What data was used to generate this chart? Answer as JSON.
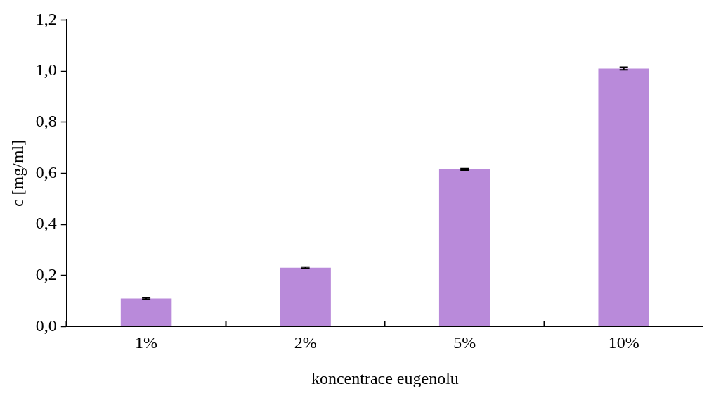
{
  "chart_data": {
    "type": "bar",
    "xlabel": "koncentrace eugenolu",
    "ylabel": "c [mg/ml]",
    "categories": [
      "1%",
      "2%",
      "5%",
      "10%"
    ],
    "values": [
      0.11,
      0.23,
      0.615,
      1.01
    ],
    "errors": [
      0.003,
      0.003,
      0.003,
      0.005
    ],
    "color": "#b98ada",
    "ylim": [
      0,
      1.2
    ],
    "yticks": [
      {
        "value": 0,
        "label": "0,0"
      },
      {
        "value": 0.2,
        "label": "0,2"
      },
      {
        "value": 0.4,
        "label": "0,4"
      },
      {
        "value": 0.6,
        "label": "0,6"
      },
      {
        "value": 0.8,
        "label": "0,8"
      },
      {
        "value": 1,
        "label": "1,0"
      },
      {
        "value": 1.2,
        "label": "1,2"
      }
    ],
    "grid": false,
    "legend": false
  }
}
